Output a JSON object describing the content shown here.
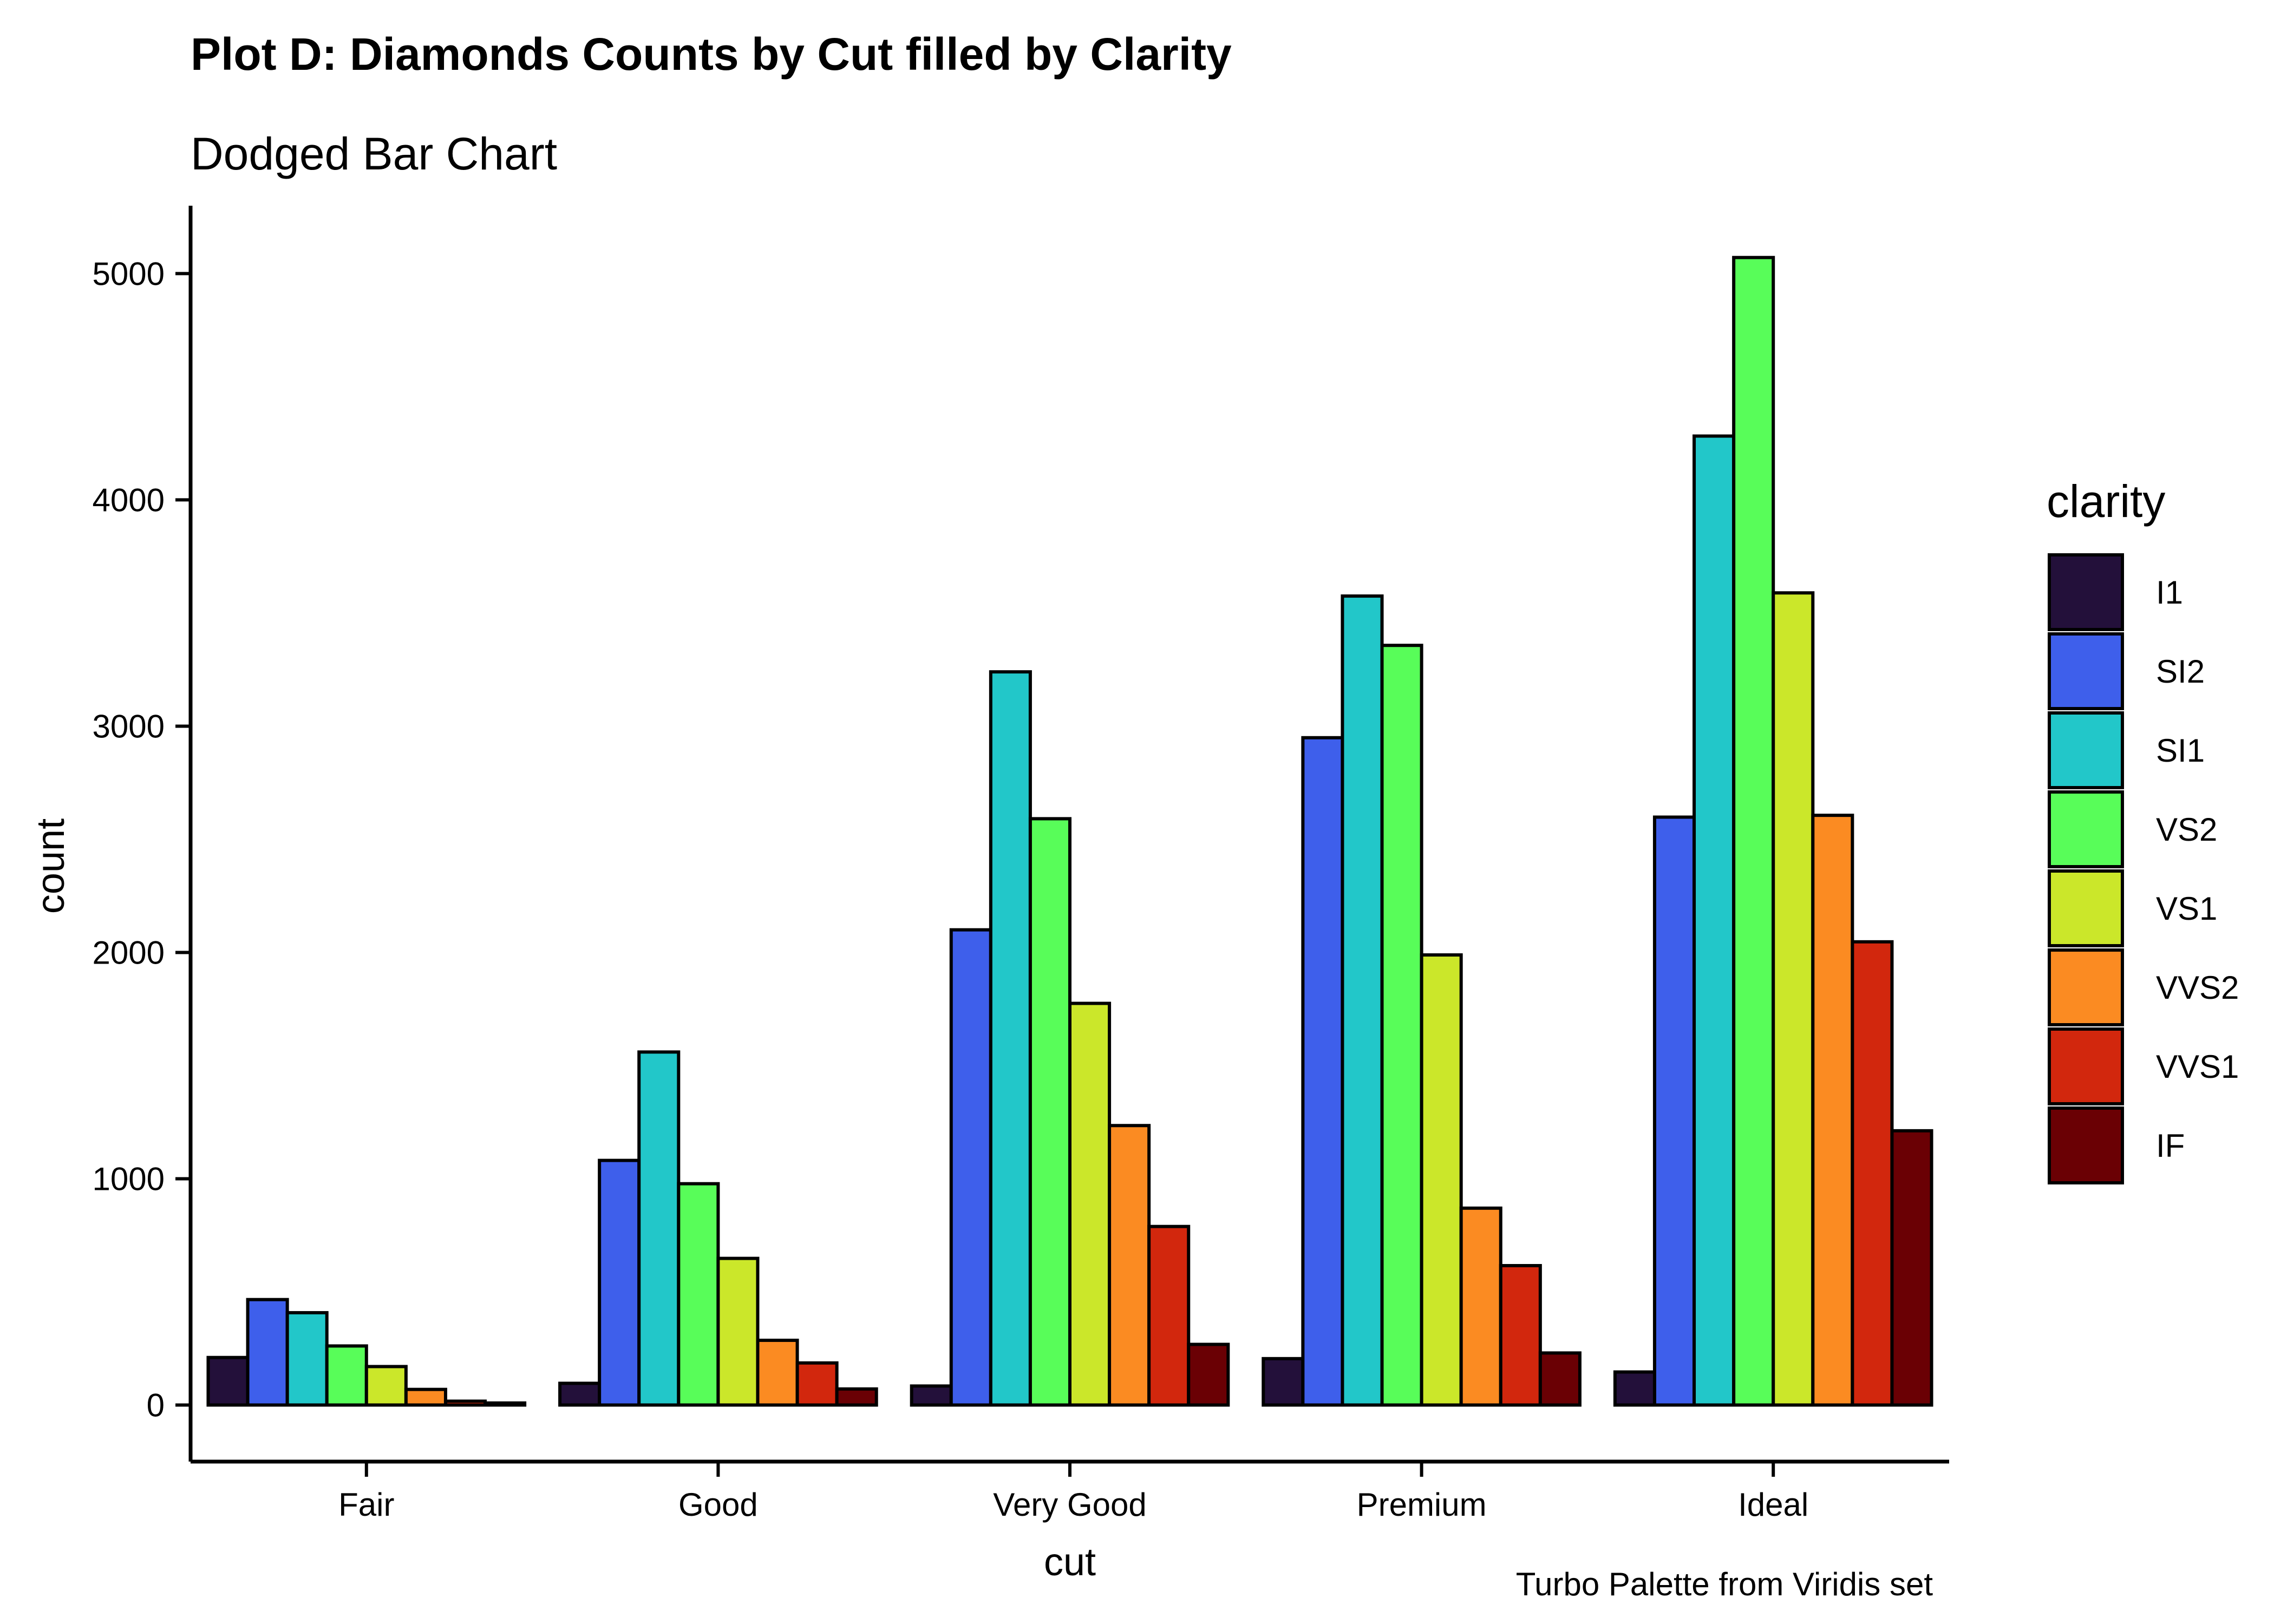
{
  "title": "Plot D: Diamonds Counts by Cut filled by Clarity",
  "subtitle": "Dodged Bar Chart",
  "caption": "Turbo Palette from Viridis set",
  "chart_data": {
    "type": "bar",
    "xlabel": "cut",
    "ylabel": "count",
    "categories": [
      "Fair",
      "Good",
      "Very Good",
      "Premium",
      "Ideal"
    ],
    "ylim": [
      -250,
      5300
    ],
    "yticks": [
      0,
      1000,
      2000,
      3000,
      4000,
      5000
    ],
    "legend_title": "clarity",
    "legend_position": "right",
    "grid": false,
    "series": [
      {
        "name": "I1",
        "color": "#23103A",
        "values": [
          210,
          96,
          84,
          205,
          146
        ]
      },
      {
        "name": "SI2",
        "color": "#3E5FEB",
        "values": [
          466,
          1081,
          2100,
          2949,
          2598
        ]
      },
      {
        "name": "SI1",
        "color": "#22C7C9",
        "values": [
          408,
          1560,
          3240,
          3575,
          4282
        ]
      },
      {
        "name": "VS2",
        "color": "#58FD59",
        "values": [
          261,
          978,
          2591,
          3357,
          5071
        ]
      },
      {
        "name": "VS1",
        "color": "#CBE72A",
        "values": [
          170,
          648,
          1775,
          1989,
          3589
        ]
      },
      {
        "name": "VVS2",
        "color": "#FB8B22",
        "values": [
          69,
          286,
          1235,
          870,
          2606
        ]
      },
      {
        "name": "VVS1",
        "color": "#D2270D",
        "values": [
          17,
          186,
          789,
          616,
          2047
        ]
      },
      {
        "name": "IF",
        "color": "#6A0004",
        "values": [
          9,
          71,
          268,
          230,
          1212
        ]
      }
    ]
  }
}
